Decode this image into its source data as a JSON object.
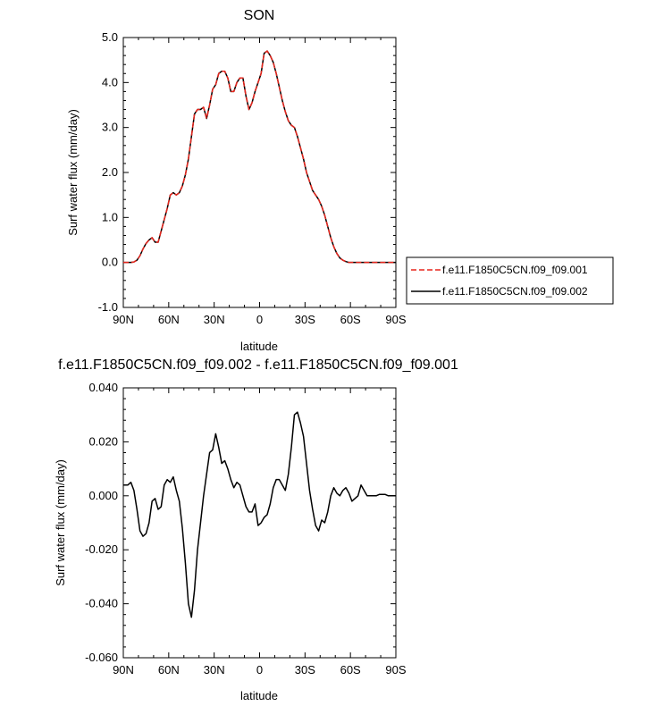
{
  "chart_data": [
    {
      "type": "line",
      "title": "SON",
      "xlabel": "latitude",
      "ylabel": "Surf water flux (mm/day)",
      "xlim": [
        90,
        -90
      ],
      "ylim": [
        -1.0,
        5.0
      ],
      "x_ticks": [
        90,
        60,
        30,
        0,
        -30,
        -60,
        -90
      ],
      "x_tick_labels": [
        "90N",
        "60N",
        "30N",
        "0",
        "30S",
        "60S",
        "90S"
      ],
      "y_ticks": [
        -1.0,
        0.0,
        1.0,
        2.0,
        3.0,
        4.0,
        5.0
      ],
      "y_tick_labels": [
        "-1.0",
        "0.0",
        "1.0",
        "2.0",
        "3.0",
        "4.0",
        "5.0"
      ],
      "legend_position": "right",
      "series": [
        {
          "name": "f.e11.F1850C5CN.f09_f09.001",
          "color": "#e8261d",
          "dash": "dashed",
          "x": [
            90,
            85,
            83,
            81,
            79,
            77,
            75,
            73,
            71,
            69,
            67,
            65,
            63,
            61,
            59,
            57,
            55,
            53,
            51,
            49,
            47,
            45,
            43,
            41,
            39,
            37,
            35,
            33,
            31,
            29,
            27,
            25,
            23,
            21,
            19,
            17,
            15,
            13,
            11,
            9,
            7,
            5,
            3,
            1,
            -1,
            -3,
            -5,
            -7,
            -9,
            -11,
            -13,
            -15,
            -17,
            -19,
            -21,
            -23,
            -25,
            -27,
            -29,
            -31,
            -33,
            -35,
            -37,
            -39,
            -41,
            -43,
            -45,
            -47,
            -49,
            -51,
            -53,
            -55,
            -57,
            -59,
            -61,
            -63,
            -65,
            -67,
            -69,
            -71,
            -73,
            -75,
            -77,
            -79,
            -81,
            -83,
            -85,
            -87,
            -90
          ],
          "y": [
            0.0,
            0.0,
            0.01,
            0.05,
            0.15,
            0.3,
            0.42,
            0.5,
            0.55,
            0.45,
            0.45,
            0.7,
            0.95,
            1.2,
            1.5,
            1.55,
            1.5,
            1.55,
            1.7,
            1.95,
            2.3,
            2.8,
            3.3,
            3.4,
            3.4,
            3.45,
            3.2,
            3.5,
            3.85,
            3.95,
            4.2,
            4.25,
            4.25,
            4.1,
            3.8,
            3.8,
            4.0,
            4.1,
            4.1,
            3.7,
            3.4,
            3.55,
            3.8,
            4.0,
            4.2,
            4.65,
            4.7,
            4.6,
            4.45,
            4.2,
            3.9,
            3.6,
            3.35,
            3.15,
            3.05,
            3.0,
            2.8,
            2.55,
            2.3,
            2.0,
            1.8,
            1.6,
            1.5,
            1.4,
            1.25,
            1.05,
            0.8,
            0.55,
            0.35,
            0.2,
            0.1,
            0.05,
            0.02,
            0.0,
            0.0,
            0.0,
            0.0,
            0.0,
            0.0,
            0.0,
            0.0,
            0.0,
            0.0,
            0.0,
            0.0,
            0.0,
            0.0,
            0.0,
            0.0
          ]
        },
        {
          "name": "f.e11.F1850C5CN.f09_f09.002",
          "color": "#000000",
          "dash": "solid",
          "x": [
            90,
            85,
            83,
            81,
            79,
            77,
            75,
            73,
            71,
            69,
            67,
            65,
            63,
            61,
            59,
            57,
            55,
            53,
            51,
            49,
            47,
            45,
            43,
            41,
            39,
            37,
            35,
            33,
            31,
            29,
            27,
            25,
            23,
            21,
            19,
            17,
            15,
            13,
            11,
            9,
            7,
            5,
            3,
            1,
            -1,
            -3,
            -5,
            -7,
            -9,
            -11,
            -13,
            -15,
            -17,
            -19,
            -21,
            -23,
            -25,
            -27,
            -29,
            -31,
            -33,
            -35,
            -37,
            -39,
            -41,
            -43,
            -45,
            -47,
            -49,
            -51,
            -53,
            -55,
            -57,
            -59,
            -61,
            -63,
            -65,
            -67,
            -69,
            -71,
            -73,
            -75,
            -77,
            -79,
            -81,
            -83,
            -85,
            -87,
            -90
          ],
          "y": [
            0.0,
            0.0,
            0.01,
            0.05,
            0.15,
            0.3,
            0.42,
            0.5,
            0.55,
            0.45,
            0.45,
            0.7,
            0.95,
            1.2,
            1.5,
            1.55,
            1.5,
            1.55,
            1.7,
            1.95,
            2.3,
            2.8,
            3.3,
            3.4,
            3.4,
            3.45,
            3.2,
            3.5,
            3.85,
            3.95,
            4.2,
            4.25,
            4.25,
            4.1,
            3.8,
            3.8,
            4.0,
            4.1,
            4.1,
            3.7,
            3.4,
            3.55,
            3.8,
            4.0,
            4.2,
            4.65,
            4.7,
            4.6,
            4.45,
            4.2,
            3.9,
            3.6,
            3.35,
            3.15,
            3.05,
            3.0,
            2.8,
            2.55,
            2.3,
            2.0,
            1.8,
            1.6,
            1.5,
            1.4,
            1.25,
            1.05,
            0.8,
            0.55,
            0.35,
            0.2,
            0.1,
            0.05,
            0.02,
            0.0,
            0.0,
            0.0,
            0.0,
            0.0,
            0.0,
            0.0,
            0.0,
            0.0,
            0.0,
            0.0,
            0.0,
            0.0,
            0.0,
            0.0,
            0.0
          ]
        }
      ]
    },
    {
      "type": "line",
      "title": "f.e11.F1850C5CN.f09_f09.002 - f.e11.F1850C5CN.f09_f09.001",
      "xlabel": "latitude",
      "ylabel": "Surf water flux (mm/day)",
      "xlim": [
        90,
        -90
      ],
      "ylim": [
        -0.06,
        0.04
      ],
      "x_ticks": [
        90,
        60,
        30,
        0,
        -30,
        -60,
        -90
      ],
      "x_tick_labels": [
        "90N",
        "60N",
        "30N",
        "0",
        "30S",
        "60S",
        "90S"
      ],
      "y_ticks": [
        -0.06,
        -0.04,
        -0.02,
        0.0,
        0.02,
        0.04
      ],
      "y_tick_labels": [
        "-0.060",
        "-0.040",
        "-0.020",
        "0.000",
        "0.020",
        "0.040"
      ],
      "series": [
        {
          "color": "#000000",
          "dash": "solid",
          "x": [
            90,
            87,
            85,
            83,
            81,
            79,
            77,
            75,
            73,
            71,
            69,
            67,
            65,
            63,
            61,
            59,
            57,
            55,
            53,
            51,
            49,
            47,
            45,
            43,
            41,
            39,
            37,
            35,
            33,
            31,
            29,
            27,
            25,
            23,
            21,
            19,
            17,
            15,
            13,
            11,
            9,
            7,
            5,
            3,
            1,
            -1,
            -3,
            -5,
            -7,
            -9,
            -11,
            -13,
            -15,
            -17,
            -19,
            -21,
            -23,
            -25,
            -27,
            -29,
            -31,
            -33,
            -35,
            -37,
            -39,
            -41,
            -43,
            -45,
            -47,
            -49,
            -51,
            -53,
            -55,
            -57,
            -59,
            -61,
            -63,
            -65,
            -67,
            -69,
            -71,
            -73,
            -75,
            -77,
            -79,
            -81,
            -83,
            -85,
            -87,
            -90
          ],
          "y": [
            0.004,
            0.004,
            0.005,
            0.002,
            -0.005,
            -0.013,
            -0.015,
            -0.014,
            -0.01,
            -0.002,
            -0.001,
            -0.005,
            -0.004,
            0.004,
            0.006,
            0.005,
            0.007,
            0.002,
            -0.002,
            -0.012,
            -0.025,
            -0.04,
            -0.045,
            -0.035,
            -0.02,
            -0.01,
            0.0,
            0.008,
            0.016,
            0.017,
            0.023,
            0.018,
            0.012,
            0.013,
            0.01,
            0.006,
            0.003,
            0.005,
            0.004,
            0.0,
            -0.004,
            -0.006,
            -0.006,
            -0.003,
            -0.011,
            -0.01,
            -0.008,
            -0.007,
            -0.003,
            0.003,
            0.006,
            0.006,
            0.004,
            0.002,
            0.008,
            0.018,
            0.03,
            0.031,
            0.027,
            0.022,
            0.012,
            0.002,
            -0.005,
            -0.011,
            -0.013,
            -0.009,
            -0.01,
            -0.006,
            0.0,
            0.003,
            0.001,
            0.0,
            0.002,
            0.003,
            0.001,
            -0.002,
            -0.001,
            0.0,
            0.004,
            0.002,
            0.0,
            0.0,
            0.0,
            0.0,
            0.0005,
            0.0005,
            0.0005,
            0.0,
            0.0,
            0.0
          ]
        }
      ]
    }
  ]
}
